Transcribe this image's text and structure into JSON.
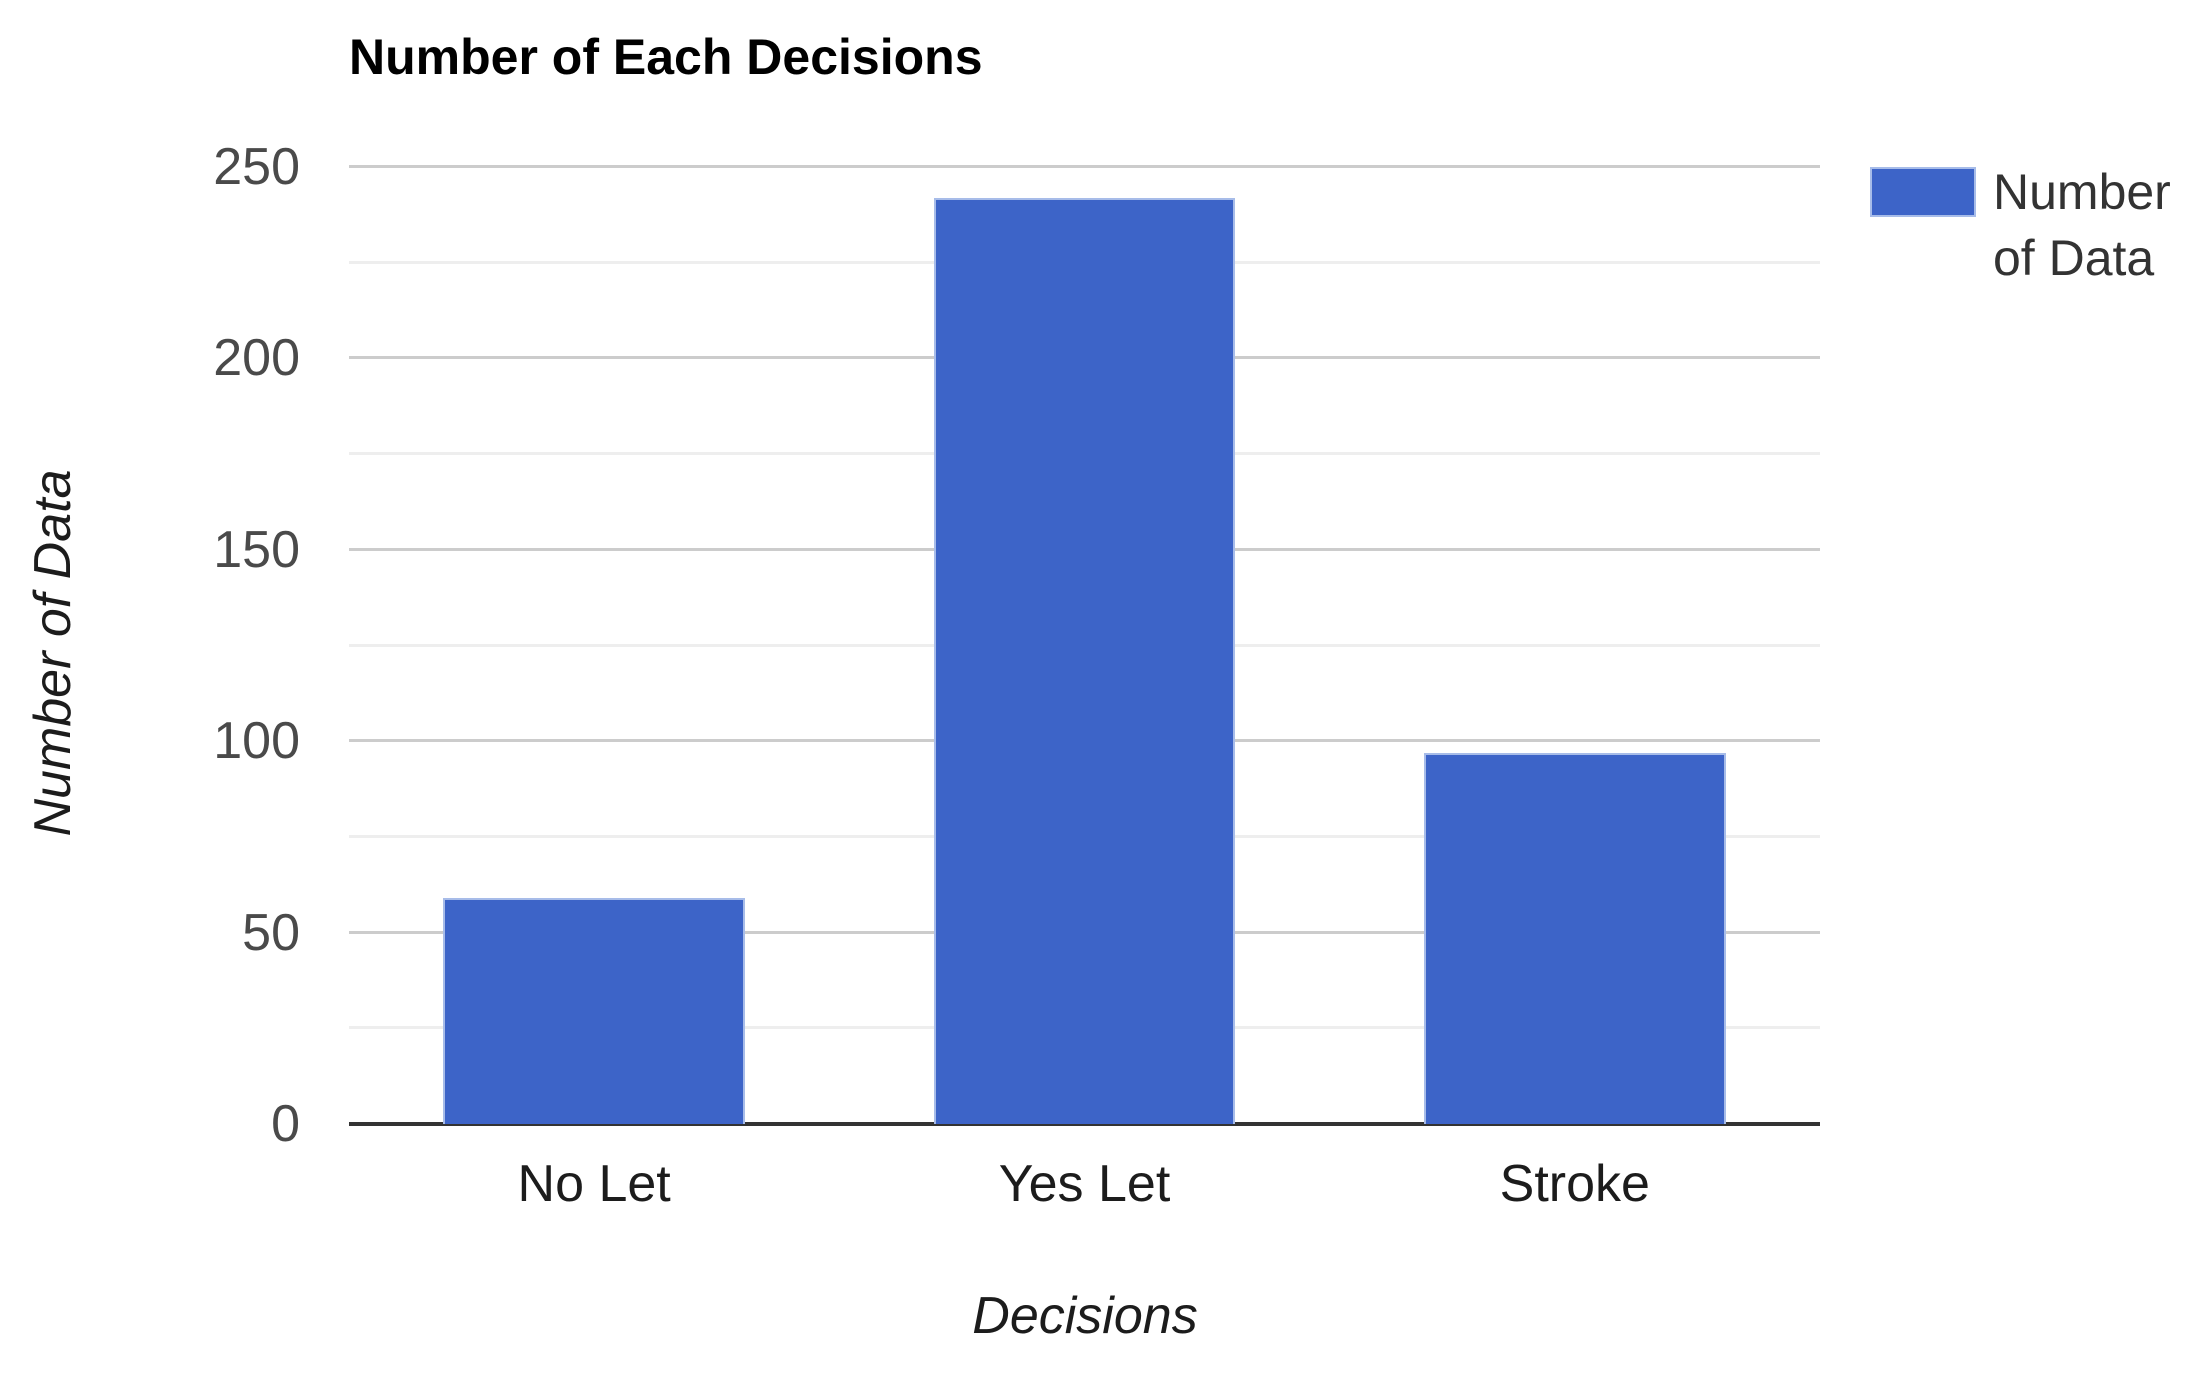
{
  "chart": {
    "title": "Number of Each Decisions",
    "x_axis_title": "Decisions",
    "y_axis_title": "Number of Data",
    "legend": {
      "label": "Number of Data",
      "line1": "Number",
      "line2": "of Data"
    }
  },
  "colors": {
    "bar": "#3d64c8",
    "bar_border": "#a7bce9",
    "major_gridline": "#cccccc",
    "minor_gridline": "#eeeeee",
    "axis_line": "#333333"
  },
  "chart_data": {
    "type": "bar",
    "title": "Number of Each Decisions",
    "categories": [
      "No Let",
      "Yes Let",
      "Stroke"
    ],
    "series": [
      {
        "name": "Number of Data",
        "values": [
          59,
          242,
          97
        ]
      }
    ],
    "xlabel": "Decisions",
    "ylabel": "Number of Data",
    "ylim": [
      0,
      250
    ],
    "yticks": [
      0,
      50,
      100,
      150,
      200,
      250
    ],
    "minor_gridline_step": 25,
    "grid": true,
    "legend_position": "right",
    "bar_color": "#3d64c8"
  }
}
